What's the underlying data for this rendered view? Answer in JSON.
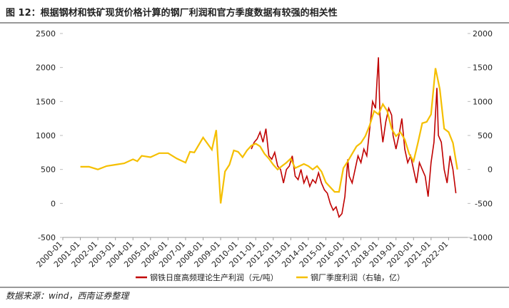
{
  "chart_data": {
    "type": "line",
    "title": "图 12：根据钢材和铁矿现货价格计算的钢厂利润和官方季度数据有较强的相关性",
    "source": "数据来源：wind，西南证券整理",
    "xlim": [
      "2000-01",
      "2023-02"
    ],
    "xticks": [
      "2000-01",
      "2001-01",
      "2002-01",
      "2003-01",
      "2004-01",
      "2005-01",
      "2006-01",
      "2007-01",
      "2008-01",
      "2009-01",
      "2010-01",
      "2011-01",
      "2012-01",
      "2013-01",
      "2014-01",
      "2015-01",
      "2016-01",
      "2017-01",
      "2018-01",
      "2019-01",
      "2020-01",
      "2021-01",
      "2022-01"
    ],
    "ylim": [
      -500,
      2500
    ],
    "yticks": [
      -500,
      0,
      500,
      1000,
      1500,
      2000,
      2500
    ],
    "y2lim": [
      -1000,
      2000
    ],
    "y2ticks": [
      -1000,
      -500,
      0,
      500,
      1000,
      1500,
      2000
    ],
    "series": [
      {
        "name": "钢铁日度高频理论生产利润（元/吨）",
        "color": "#c00000",
        "x": [
          "2010-10",
          "2010-12",
          "2011-02",
          "2011-04",
          "2011-06",
          "2011-08",
          "2011-10",
          "2011-12",
          "2012-02",
          "2012-04",
          "2012-06",
          "2012-08",
          "2012-10",
          "2012-12",
          "2013-02",
          "2013-04",
          "2013-06",
          "2013-08",
          "2013-10",
          "2013-12",
          "2014-02",
          "2014-04",
          "2014-06",
          "2014-08",
          "2014-10",
          "2014-12",
          "2015-02",
          "2015-04",
          "2015-06",
          "2015-08",
          "2015-10",
          "2015-12",
          "2016-02",
          "2016-04",
          "2016-05",
          "2016-07",
          "2016-09",
          "2016-11",
          "2017-01",
          "2017-03",
          "2017-05",
          "2017-07",
          "2017-09",
          "2017-11",
          "2017-12",
          "2018-01",
          "2018-02",
          "2018-04",
          "2018-06",
          "2018-08",
          "2018-10",
          "2018-11",
          "2019-01",
          "2019-03",
          "2019-05",
          "2019-07",
          "2019-09",
          "2019-11",
          "2020-01",
          "2020-03",
          "2020-05",
          "2020-07",
          "2020-09",
          "2020-11",
          "2021-01",
          "2021-03",
          "2021-05",
          "2021-06",
          "2021-08",
          "2021-10",
          "2021-12",
          "2022-02",
          "2022-04",
          "2022-06"
        ],
        "values": [
          800,
          900,
          950,
          1050,
          900,
          1100,
          700,
          650,
          750,
          550,
          500,
          300,
          500,
          550,
          700,
          400,
          350,
          500,
          300,
          400,
          250,
          350,
          300,
          450,
          300,
          200,
          150,
          0,
          -100,
          -50,
          -200,
          -150,
          100,
          650,
          400,
          300,
          500,
          700,
          600,
          800,
          700,
          1100,
          1500,
          1400,
          1800,
          2150,
          1300,
          900,
          1200,
          1400,
          1300,
          1000,
          800,
          1000,
          1250,
          800,
          600,
          700,
          500,
          300,
          600,
          500,
          400,
          100,
          600,
          900,
          1700,
          1000,
          900,
          500,
          300,
          700,
          500,
          150
        ]
      },
      {
        "name": "钢厂季度利润（右轴，亿）",
        "color": "#f5bf00",
        "axis": "y2",
        "x": [
          "2001-01",
          "2001-07",
          "2002-01",
          "2002-07",
          "2003-01",
          "2003-07",
          "2004-01",
          "2004-04",
          "2004-07",
          "2005-01",
          "2005-07",
          "2006-01",
          "2006-07",
          "2007-01",
          "2007-04",
          "2007-07",
          "2008-01",
          "2008-07",
          "2008-10",
          "2009-01",
          "2009-04",
          "2009-07",
          "2009-10",
          "2010-01",
          "2010-04",
          "2010-07",
          "2010-10",
          "2011-01",
          "2011-04",
          "2011-07",
          "2011-10",
          "2012-01",
          "2012-04",
          "2012-07",
          "2012-10",
          "2013-01",
          "2013-04",
          "2013-07",
          "2013-10",
          "2014-01",
          "2014-04",
          "2014-07",
          "2014-10",
          "2015-01",
          "2015-04",
          "2015-07",
          "2015-10",
          "2016-01",
          "2016-04",
          "2016-07",
          "2016-10",
          "2017-01",
          "2017-04",
          "2017-07",
          "2017-10",
          "2018-01",
          "2018-04",
          "2018-07",
          "2018-10",
          "2019-01",
          "2019-04",
          "2019-07",
          "2019-10",
          "2020-01",
          "2020-04",
          "2020-07",
          "2020-10",
          "2021-01",
          "2021-04",
          "2021-07",
          "2021-10",
          "2022-01",
          "2022-04",
          "2022-07"
        ],
        "values": [
          40,
          40,
          0,
          50,
          70,
          90,
          150,
          120,
          200,
          180,
          240,
          240,
          160,
          100,
          260,
          250,
          470,
          290,
          580,
          -500,
          -30,
          70,
          280,
          260,
          180,
          280,
          350,
          380,
          340,
          230,
          160,
          70,
          0,
          50,
          100,
          160,
          20,
          50,
          80,
          50,
          0,
          50,
          -30,
          -190,
          -260,
          -330,
          -330,
          20,
          120,
          230,
          340,
          390,
          490,
          650,
          860,
          810,
          960,
          860,
          600,
          490,
          550,
          440,
          230,
          120,
          390,
          680,
          700,
          810,
          1490,
          1180,
          600,
          550,
          390,
          0
        ]
      }
    ]
  }
}
